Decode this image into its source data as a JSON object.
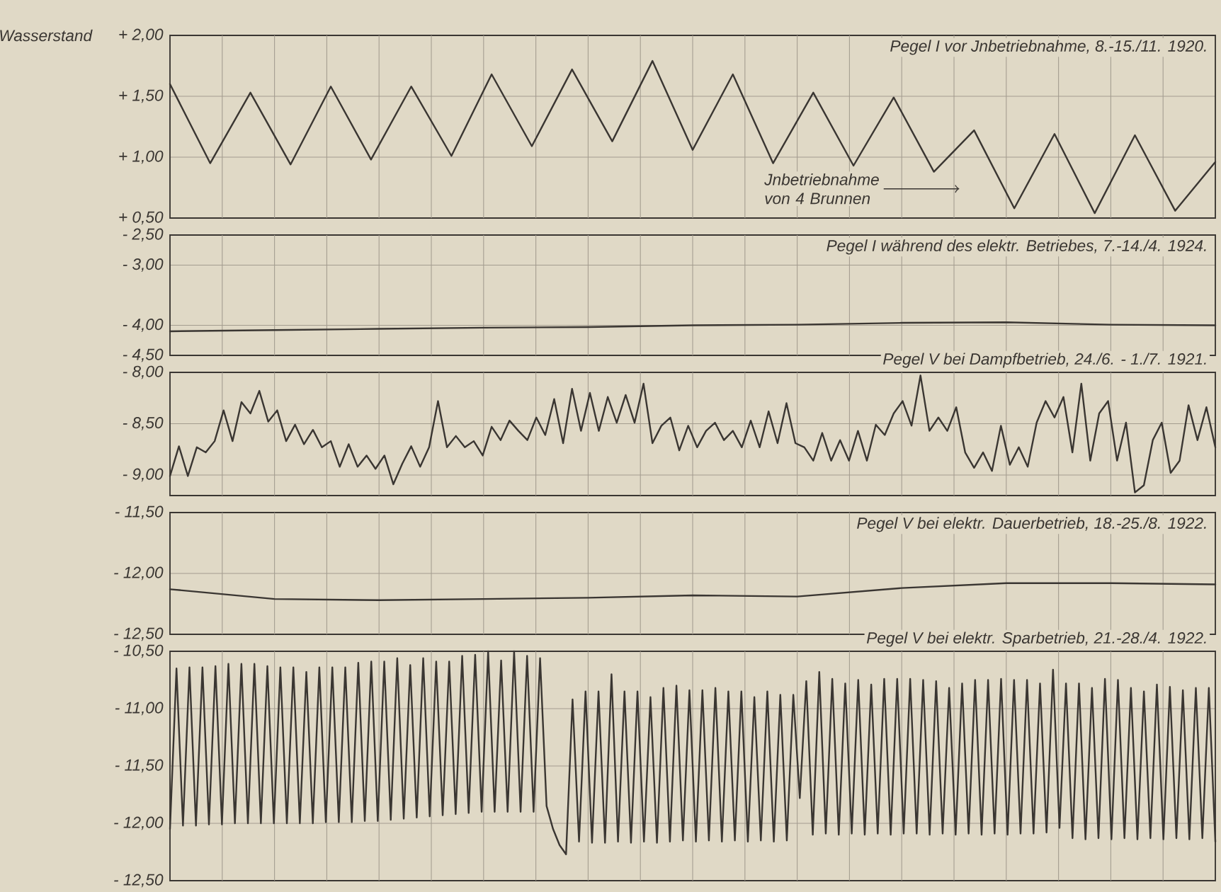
{
  "chart_data": [
    {
      "type": "line",
      "title": "Pegel I vor Jnbetriebnahme, 8.-15./11. 1920.",
      "ylabel": "Wasserstand",
      "color": "#3a3632",
      "grid": true,
      "tick_labels": "y",
      "categories": [
        null,
        null,
        null,
        null,
        null,
        null,
        null,
        null,
        null,
        null,
        null,
        null,
        null,
        null,
        null,
        null,
        null,
        null,
        null,
        null,
        null,
        null,
        null,
        null,
        null,
        null,
        null
      ],
      "values": [
        1.6,
        0.95,
        1.53,
        0.94,
        1.58,
        0.98,
        1.58,
        1.01,
        1.68,
        1.09,
        1.72,
        1.13,
        1.79,
        1.06,
        1.68,
        0.95,
        1.53,
        0.93,
        1.49,
        0.88,
        1.22,
        0.58,
        1.19,
        0.54,
        1.18,
        0.56,
        0.96
      ],
      "annotations": [
        "Jnbetriebnahme von 4 Brunnen"
      ],
      "ylim": [
        0.5,
        2.0
      ],
      "yticks": [
        {
          "value": 2.0,
          "label": "+ 2,00"
        },
        {
          "value": 1.5,
          "label": "+ 1,50"
        },
        {
          "value": 1.0,
          "label": "+ 1,00"
        },
        {
          "value": 0.5,
          "label": "+ 0,50"
        }
      ]
    },
    {
      "type": "line",
      "title": "Pegel I während des elektr. Betriebes, 7.-14./4. 1924.",
      "color": "#3a3632",
      "grid": true,
      "tick_labels": "y",
      "categories": [
        null,
        null,
        null,
        null,
        null,
        null,
        null,
        null,
        null,
        null,
        null
      ],
      "values": [
        -4.1,
        -4.08,
        -4.06,
        -4.04,
        -4.03,
        -4.0,
        -3.99,
        -3.96,
        -3.95,
        -3.99,
        -4.0
      ],
      "ylim": [
        -4.5,
        -2.5
      ],
      "yticks": [
        {
          "value": -2.5,
          "label": "- 2,50"
        },
        {
          "value": -3.0,
          "label": "- 3,00"
        },
        {
          "value": -4.0,
          "label": "- 4,00"
        },
        {
          "value": -4.5,
          "label": "- 4,50"
        }
      ]
    },
    {
      "type": "line",
      "title": "Pegel V bei Dampfbetrieb, 24./6. - 1./7. 1921.",
      "color": "#3a3632",
      "grid": true,
      "tick_labels": "y",
      "categories": [
        null,
        null,
        null,
        null,
        null,
        null,
        null,
        null,
        null,
        null,
        null,
        null,
        null,
        null,
        null,
        null,
        null,
        null,
        null,
        null,
        null,
        null,
        null,
        null,
        null,
        null,
        null,
        null,
        null,
        null,
        null,
        null,
        null,
        null,
        null,
        null,
        null,
        null,
        null,
        null,
        null,
        null,
        null,
        null,
        null,
        null,
        null,
        null,
        null,
        null,
        null,
        null,
        null,
        null,
        null,
        null,
        null,
        null,
        null,
        null,
        null,
        null,
        null,
        null,
        null,
        null,
        null,
        null,
        null,
        null,
        null,
        null,
        null,
        null,
        null,
        null,
        null,
        null,
        null,
        null,
        null,
        null,
        null,
        null,
        null,
        null,
        null,
        null,
        null,
        null,
        null,
        null,
        null,
        null,
        null,
        null,
        null,
        null,
        null,
        null,
        null,
        null,
        null,
        null,
        null,
        null,
        null,
        null,
        null,
        null,
        null,
        null,
        null,
        null,
        null,
        null,
        null,
        null
      ],
      "values": [
        -9.01,
        -8.72,
        -9.01,
        -8.73,
        -8.78,
        -8.67,
        -8.37,
        -8.67,
        -8.29,
        -8.4,
        -8.18,
        -8.48,
        -8.37,
        -8.67,
        -8.51,
        -8.7,
        -8.56,
        -8.73,
        -8.67,
        -8.92,
        -8.7,
        -8.92,
        -8.81,
        -8.94,
        -8.81,
        -9.09,
        -8.89,
        -8.72,
        -8.92,
        -8.73,
        -8.28,
        -8.73,
        -8.62,
        -8.73,
        -8.67,
        -8.81,
        -8.53,
        -8.66,
        -8.47,
        -8.57,
        -8.66,
        -8.44,
        -8.61,
        -8.26,
        -8.69,
        -8.16,
        -8.57,
        -8.2,
        -8.57,
        -8.24,
        -8.49,
        -8.22,
        -8.49,
        -8.11,
        -8.69,
        -8.52,
        -8.44,
        -8.76,
        -8.52,
        -8.73,
        -8.57,
        -8.49,
        -8.66,
        -8.57,
        -8.73,
        -8.47,
        -8.73,
        -8.38,
        -8.69,
        -8.3,
        -8.69,
        -8.73,
        -8.86,
        -8.59,
        -8.86,
        -8.66,
        -8.86,
        -8.57,
        -8.86,
        -8.51,
        -8.61,
        -8.4,
        -8.28,
        -8.52,
        -8.03,
        -8.57,
        -8.44,
        -8.57,
        -8.34,
        -8.78,
        -8.93,
        -8.78,
        -8.96,
        -8.52,
        -8.9,
        -8.73,
        -8.92,
        -8.49,
        -8.28,
        -8.44,
        -8.24,
        -8.78,
        -8.11,
        -8.86,
        -8.4,
        -8.28,
        -8.86,
        -8.49,
        -9.17,
        -9.1,
        -8.66,
        -8.49,
        -8.98,
        -8.86,
        -8.32,
        -8.66,
        -8.34,
        -8.73
      ],
      "ylim": [
        -9.2,
        -8.0
      ],
      "yticks": [
        {
          "value": -8.0,
          "label": "- 8,00"
        },
        {
          "value": -8.5,
          "label": "- 8,50"
        },
        {
          "value": -9.0,
          "label": "- 9,00"
        }
      ]
    },
    {
      "type": "line",
      "title": "Pegel V bei elektr. Dauerbetrieb, 18.-25./8. 1922.",
      "color": "#3a3632",
      "grid": true,
      "tick_labels": "y",
      "categories": [
        null,
        null,
        null,
        null,
        null,
        null,
        null,
        null,
        null,
        null,
        null
      ],
      "values": [
        -12.13,
        -12.21,
        -12.22,
        -12.21,
        -12.2,
        -12.18,
        -12.19,
        -12.12,
        -12.08,
        -12.08,
        -12.09
      ],
      "ylim": [
        -12.5,
        -11.5
      ],
      "yticks": [
        {
          "value": -11.5,
          "label": "- 11,50"
        },
        {
          "value": -12.0,
          "label": "- 12,00"
        },
        {
          "value": -12.5,
          "label": "- 12,50"
        }
      ]
    },
    {
      "type": "line",
      "title": "Pegel V bei elektr. Sparbetrieb, 21.-28./4. 1922.",
      "color": "#3a3632",
      "grid": true,
      "tick_labels": "y",
      "categories": [
        null,
        null,
        null,
        null,
        null,
        null,
        null,
        null,
        null,
        null,
        null,
        null,
        null,
        null,
        null,
        null,
        null,
        null,
        null,
        null,
        null,
        null,
        null,
        null,
        null,
        null,
        null,
        null,
        null,
        null,
        null,
        null,
        null,
        null,
        null,
        null,
        null,
        null,
        null,
        null,
        null,
        null,
        null,
        null,
        null,
        null,
        null,
        null,
        null,
        null,
        null,
        null,
        null,
        null,
        null,
        null,
        null,
        null,
        null,
        null,
        null,
        null,
        null,
        null,
        null,
        null,
        null,
        null,
        null,
        null,
        null,
        null,
        null,
        null,
        null,
        null,
        null,
        null,
        null,
        null,
        null,
        null,
        null,
        null,
        null,
        null,
        null,
        null,
        null,
        null,
        null,
        null,
        null,
        null,
        null,
        null,
        null,
        null,
        null,
        null,
        null,
        null,
        null,
        null,
        null,
        null,
        null,
        null,
        null,
        null,
        null,
        null,
        null,
        null,
        null,
        null,
        null,
        null,
        null,
        null,
        null,
        null,
        null,
        null,
        null,
        null,
        null,
        null,
        null,
        null,
        null,
        null,
        null,
        null,
        null,
        null,
        null,
        null,
        null,
        null,
        null,
        null,
        null,
        null,
        null,
        null,
        null,
        null,
        null,
        null,
        null,
        null,
        null,
        null,
        null,
        null,
        null,
        null,
        null,
        null,
        null,
        null
      ],
      "values": [
        -12.05,
        -10.65,
        -12.02,
        -10.64,
        -12.02,
        -10.64,
        -12.01,
        -10.63,
        -12.01,
        -10.61,
        -12.0,
        -10.61,
        -12.0,
        -10.61,
        -12.0,
        -10.63,
        -12.0,
        -10.64,
        -12.0,
        -10.64,
        -12.0,
        -10.68,
        -12.0,
        -10.64,
        -11.99,
        -10.64,
        -11.99,
        -10.64,
        -11.99,
        -10.6,
        -11.98,
        -10.59,
        -11.98,
        -10.59,
        -11.97,
        -10.56,
        -11.96,
        -10.62,
        -11.95,
        -10.56,
        -11.94,
        -10.59,
        -11.93,
        -10.59,
        -11.92,
        -10.54,
        -11.91,
        -10.53,
        -11.9,
        -10.5,
        -11.9,
        -10.58,
        -11.9,
        -10.5,
        -11.9,
        -10.54,
        -11.9,
        -10.56,
        -11.85,
        -12.05,
        -12.19,
        -12.27,
        -10.92,
        -12.16,
        -10.85,
        -12.17,
        -10.85,
        -12.17,
        -10.7,
        -12.16,
        -10.85,
        -12.17,
        -10.85,
        -12.16,
        -10.9,
        -12.17,
        -10.82,
        -12.16,
        -10.8,
        -12.15,
        -10.84,
        -12.16,
        -10.84,
        -12.15,
        -10.82,
        -12.16,
        -10.85,
        -12.15,
        -10.85,
        -12.16,
        -10.9,
        -12.15,
        -10.85,
        -12.16,
        -10.88,
        -12.15,
        -10.88,
        -11.78,
        -10.76,
        -12.1,
        -10.68,
        -12.09,
        -10.74,
        -12.1,
        -10.78,
        -12.09,
        -10.75,
        -12.1,
        -10.79,
        -12.09,
        -10.74,
        -12.1,
        -10.74,
        -12.09,
        -10.74,
        -12.09,
        -10.75,
        -12.1,
        -10.76,
        -12.09,
        -10.82,
        -12.1,
        -10.78,
        -12.09,
        -10.75,
        -12.1,
        -10.75,
        -12.09,
        -10.74,
        -12.1,
        -10.75,
        -12.09,
        -10.75,
        -12.09,
        -10.78,
        -12.08,
        -10.66,
        -12.04,
        -10.78,
        -12.13,
        -10.78,
        -12.14,
        -10.82,
        -12.13,
        -10.74,
        -12.14,
        -10.75,
        -12.13,
        -10.82,
        -12.14,
        -10.85,
        -12.13,
        -10.79,
        -12.14,
        -10.81,
        -12.13,
        -10.84,
        -12.14,
        -10.82,
        -12.13,
        -10.82,
        -12.16
      ],
      "ylim": [
        -12.5,
        -10.5
      ],
      "yticks": [
        {
          "value": -10.5,
          "label": "- 10,50"
        },
        {
          "value": -11.0,
          "label": "- 11,00"
        },
        {
          "value": -11.5,
          "label": "- 11,50"
        },
        {
          "value": -12.0,
          "label": "- 12,00"
        },
        {
          "value": -12.5,
          "label": "- 12,50"
        }
      ]
    }
  ]
}
